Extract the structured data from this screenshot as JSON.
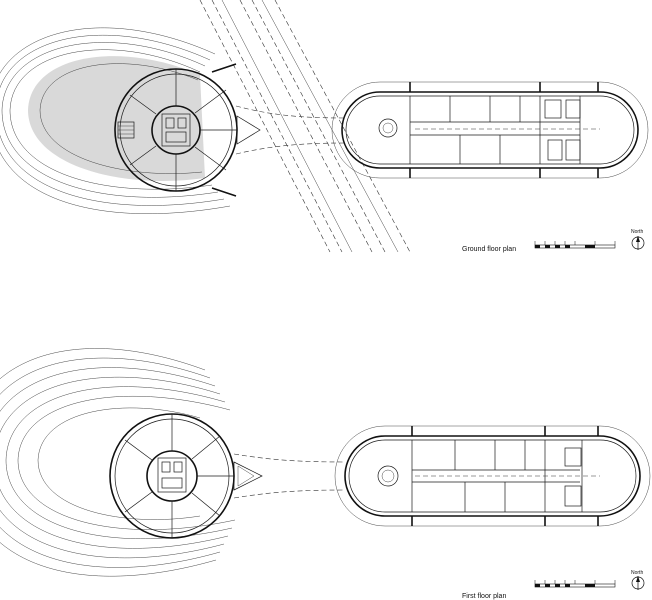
{
  "plans": [
    {
      "title": "Ground floor plan",
      "north_label": "North"
    },
    {
      "title": "First floor plan",
      "north_label": "North"
    }
  ]
}
